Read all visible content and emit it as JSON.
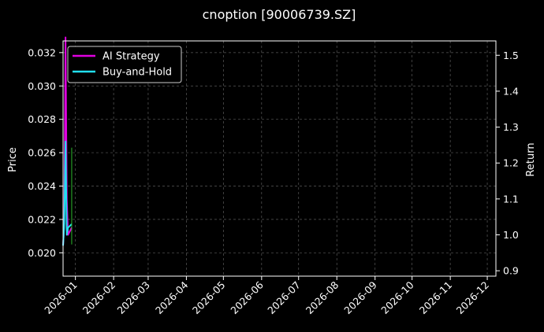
{
  "chart_data": {
    "type": "line",
    "title": "cnoption [90006739.SZ]",
    "ylabel_left": "Price",
    "ylabel_right": "Return",
    "grid": true,
    "legend_placement": "top-left",
    "x_range": [
      "2025-12-22",
      "2026-12-08"
    ],
    "x_ticks": [
      "2026-01",
      "2026-02",
      "2026-03",
      "2026-04",
      "2026-05",
      "2026-06",
      "2026-07",
      "2026-08",
      "2026-09",
      "2026-10",
      "2026-11",
      "2026-12"
    ],
    "y_left_range": [
      0.0186,
      0.0327
    ],
    "y_left_ticks": [
      "0.020",
      "0.022",
      "0.024",
      "0.026",
      "0.028",
      "0.030",
      "0.032"
    ],
    "y_right_range": [
      0.885,
      1.54
    ],
    "y_right_ticks": [
      "0.9",
      "1.0",
      "1.1",
      "1.2",
      "1.3",
      "1.4",
      "1.5"
    ],
    "series": [
      {
        "name": "AI Strategy",
        "axis": "right",
        "color": "#e000e0",
        "x": [
          "2025-12-22",
          "2025-12-23",
          "2025-12-24",
          "2025-12-25",
          "2025-12-26",
          "2025-12-29"
        ],
        "y": [
          0.97,
          1.03,
          1.55,
          1.1,
          1.0,
          1.02
        ]
      },
      {
        "name": "Buy-and-Hold",
        "axis": "right",
        "color": "#22e0f0",
        "x": [
          "2025-12-22",
          "2025-12-23",
          "2025-12-24",
          "2025-12-25",
          "2025-12-26",
          "2025-12-29"
        ],
        "y": [
          0.97,
          1.03,
          1.26,
          1.0,
          1.02,
          1.03
        ]
      },
      {
        "name": "",
        "axis": "left",
        "color": "#2db82d",
        "x": [
          "2025-12-29",
          "2025-12-29"
        ],
        "y": [
          0.0205,
          0.0263
        ]
      }
    ],
    "legend": [
      {
        "label": "AI Strategy",
        "color": "#e000e0"
      },
      {
        "label": "Buy-and-Hold",
        "color": "#22e0f0"
      }
    ]
  }
}
